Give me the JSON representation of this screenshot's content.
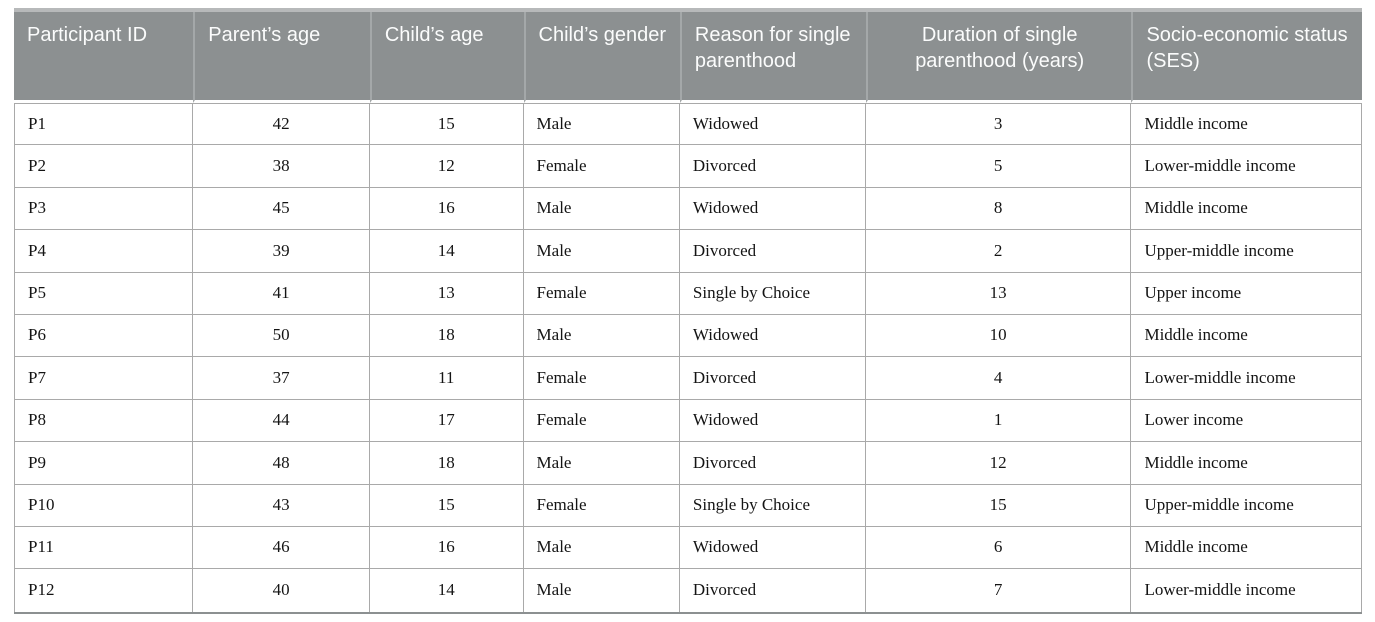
{
  "table": {
    "name": "participant-demographics",
    "columns": [
      {
        "key": "participant-id",
        "label": "Participant ID",
        "align": "left",
        "header_align": "left"
      },
      {
        "key": "parents-age",
        "label": "Parent’s age",
        "align": "center",
        "header_align": "left"
      },
      {
        "key": "childs-age",
        "label": "Child’s age",
        "align": "center",
        "header_align": "left"
      },
      {
        "key": "childs-gender",
        "label": "Child’s gender",
        "align": "left",
        "header_align": "left"
      },
      {
        "key": "reason-for-single-parenthood",
        "label": "Reason for single parenthood",
        "align": "left",
        "header_align": "left"
      },
      {
        "key": "duration-of-single-parenthood",
        "label": "Duration of single parenthood (years)",
        "align": "center",
        "header_align": "center"
      },
      {
        "key": "socio-economic-status",
        "label": "Socio-economic status (SES)",
        "align": "left",
        "header_align": "left"
      }
    ],
    "rows": [
      [
        "P1",
        "42",
        "15",
        "Male",
        "Widowed",
        "3",
        "Middle income"
      ],
      [
        "P2",
        "38",
        "12",
        "Female",
        "Divorced",
        "5",
        "Lower-middle income"
      ],
      [
        "P3",
        "45",
        "16",
        "Male",
        "Widowed",
        "8",
        "Middle income"
      ],
      [
        "P4",
        "39",
        "14",
        "Male",
        "Divorced",
        "2",
        "Upper-middle income"
      ],
      [
        "P5",
        "41",
        "13",
        "Female",
        "Single by Choice",
        "13",
        "Upper income"
      ],
      [
        "P6",
        "50",
        "18",
        "Male",
        "Widowed",
        "10",
        "Middle income"
      ],
      [
        "P7",
        "37",
        "11",
        "Female",
        "Divorced",
        "4",
        "Lower-middle income"
      ],
      [
        "P8",
        "44",
        "17",
        "Female",
        "Widowed",
        "1",
        "Lower income"
      ],
      [
        "P9",
        "48",
        "18",
        "Male",
        "Divorced",
        "12",
        "Middle income"
      ],
      [
        "P10",
        "43",
        "15",
        "Female",
        "Single by Choice",
        "15",
        "Upper-middle income"
      ],
      [
        "P11",
        "46",
        "16",
        "Male",
        "Widowed",
        "6",
        "Middle income"
      ],
      [
        "P12",
        "40",
        "14",
        "Male",
        "Divorced",
        "7",
        "Lower-middle income"
      ]
    ]
  },
  "colors": {
    "header_bg": "#8c9091",
    "header_text": "#fbfcfc",
    "header_divider": "#a4a8a9",
    "header_top_band": "#b7b9ba",
    "body_border": "#a9a9a9",
    "body_text": "#141414",
    "table_bottom_border": "#8c9091",
    "page_bg": "#ffffff"
  }
}
